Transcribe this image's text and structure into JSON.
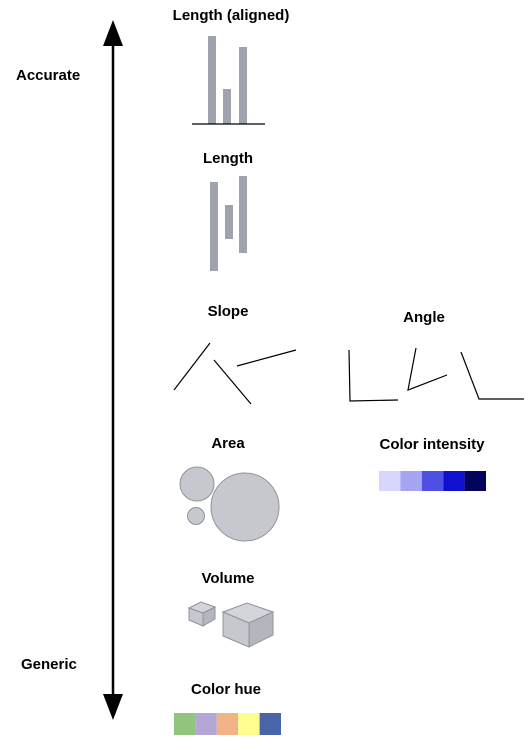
{
  "axis": {
    "top_label": "Accurate",
    "bottom_label": "Generic"
  },
  "encodings": {
    "length_aligned": {
      "title": "Length (aligned)"
    },
    "length": {
      "title": "Length"
    },
    "slope": {
      "title": "Slope"
    },
    "angle": {
      "title": "Angle"
    },
    "area": {
      "title": "Area"
    },
    "color_intensity": {
      "title": "Color intensity"
    },
    "volume": {
      "title": "Volume"
    },
    "color_hue": {
      "title": "Color hue"
    }
  },
  "colors": {
    "bar": "#9ea3ad",
    "shape_fill": "#c6c8ce",
    "intensity_swatches": [
      "#d7d7fb",
      "#a5a5f3",
      "#5050e4",
      "#1010d0",
      "#04045a"
    ],
    "hue_swatches": [
      "#93c47d",
      "#b4a7d6",
      "#f0b486",
      "#ffff8e",
      "#4a64aa"
    ]
  }
}
